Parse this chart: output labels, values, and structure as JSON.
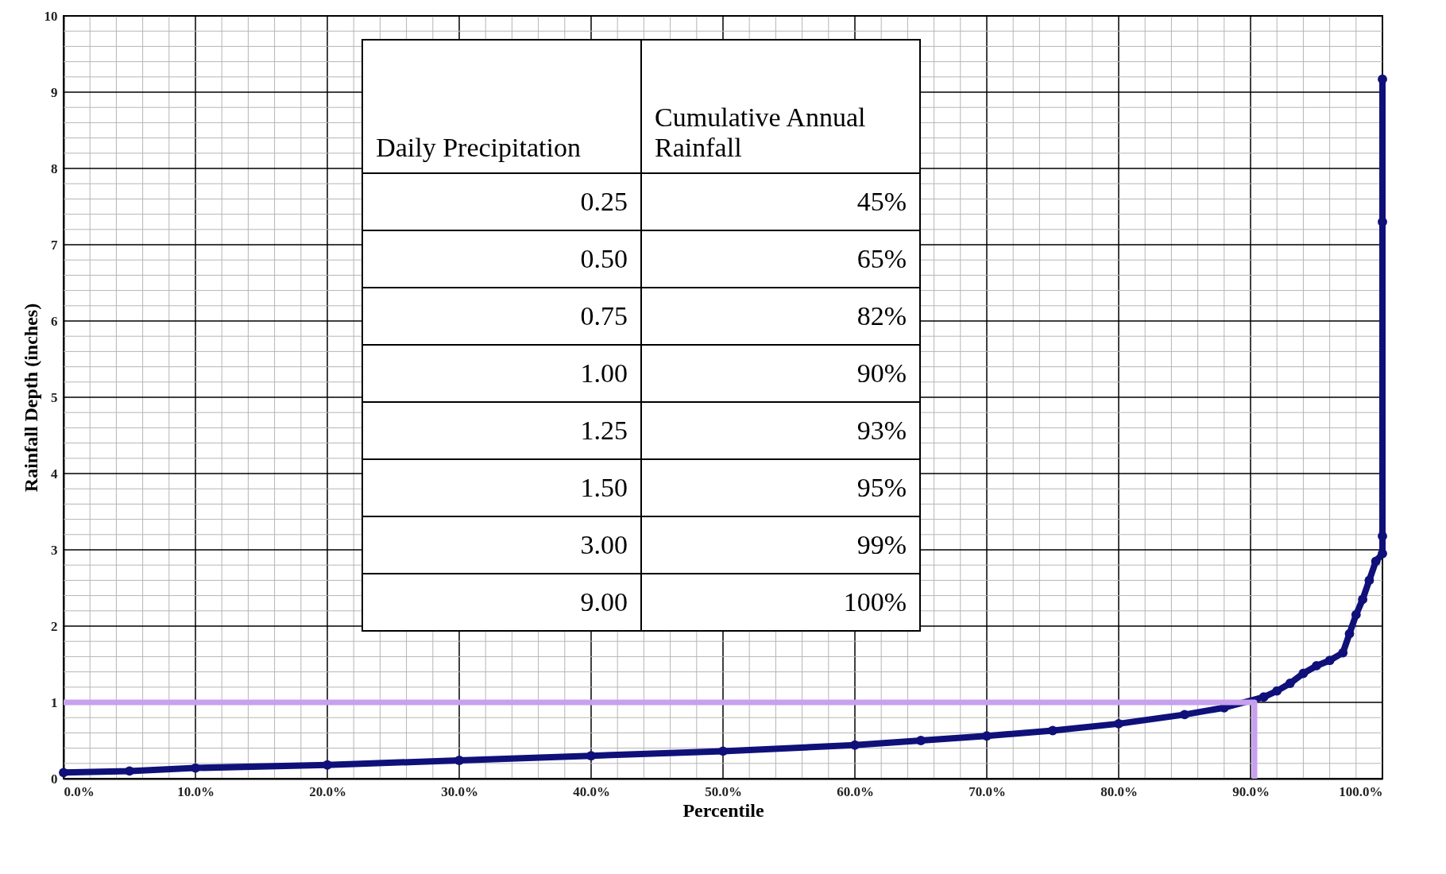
{
  "chart_data": {
    "type": "line",
    "xlabel": "Percentile",
    "ylabel": "Rainfall Depth (inches)",
    "xlim": [
      0,
      100
    ],
    "ylim": [
      0,
      10
    ],
    "xticks": [
      {
        "value": 0,
        "label": "0.0%"
      },
      {
        "value": 2,
        "label": null
      },
      {
        "value": 4,
        "label": null
      },
      {
        "value": 6,
        "label": null
      },
      {
        "value": 8,
        "label": null
      },
      {
        "value": 10,
        "label": "10.0%"
      },
      {
        "value": 12,
        "label": null
      },
      {
        "value": 14,
        "label": null
      },
      {
        "value": 16,
        "label": null
      },
      {
        "value": 18,
        "label": null
      },
      {
        "value": 20,
        "label": "20.0%"
      },
      {
        "value": 22,
        "label": null
      },
      {
        "value": 24,
        "label": null
      },
      {
        "value": 26,
        "label": null
      },
      {
        "value": 28,
        "label": null
      },
      {
        "value": 30,
        "label": "30.0%"
      },
      {
        "value": 32,
        "label": null
      },
      {
        "value": 34,
        "label": null
      },
      {
        "value": 36,
        "label": null
      },
      {
        "value": 38,
        "label": null
      },
      {
        "value": 40,
        "label": "40.0%"
      },
      {
        "value": 42,
        "label": null
      },
      {
        "value": 44,
        "label": null
      },
      {
        "value": 46,
        "label": null
      },
      {
        "value": 48,
        "label": null
      },
      {
        "value": 50,
        "label": "50.0%"
      },
      {
        "value": 52,
        "label": null
      },
      {
        "value": 54,
        "label": null
      },
      {
        "value": 56,
        "label": null
      },
      {
        "value": 58,
        "label": null
      },
      {
        "value": 60,
        "label": "60.0%"
      },
      {
        "value": 62,
        "label": null
      },
      {
        "value": 64,
        "label": null
      },
      {
        "value": 66,
        "label": null
      },
      {
        "value": 68,
        "label": null
      },
      {
        "value": 70,
        "label": "70.0%"
      },
      {
        "value": 72,
        "label": null
      },
      {
        "value": 74,
        "label": null
      },
      {
        "value": 76,
        "label": null
      },
      {
        "value": 78,
        "label": null
      },
      {
        "value": 80,
        "label": "80.0%"
      },
      {
        "value": 82,
        "label": null
      },
      {
        "value": 84,
        "label": null
      },
      {
        "value": 86,
        "label": null
      },
      {
        "value": 88,
        "label": null
      },
      {
        "value": 90,
        "label": "90.0%"
      },
      {
        "value": 92,
        "label": null
      },
      {
        "value": 94,
        "label": null
      },
      {
        "value": 96,
        "label": null
      },
      {
        "value": 98,
        "label": null
      },
      {
        "value": 100,
        "label": "100.0%"
      }
    ],
    "yticks": [
      0,
      {
        "value": 0.2,
        "label": null
      },
      {
        "value": 0.4,
        "label": null
      },
      {
        "value": 0.6,
        "label": null
      },
      {
        "value": 0.8,
        "label": null
      },
      1,
      {
        "value": 1.2,
        "label": null
      },
      {
        "value": 1.4,
        "label": null
      },
      {
        "value": 1.6,
        "label": null
      },
      {
        "value": 1.8,
        "label": null
      },
      2,
      {
        "value": 2.2,
        "label": null
      },
      {
        "value": 2.4,
        "label": null
      },
      {
        "value": 2.6,
        "label": null
      },
      {
        "value": 2.8,
        "label": null
      },
      3,
      {
        "value": 3.2,
        "label": null
      },
      {
        "value": 3.4,
        "label": null
      },
      {
        "value": 3.6,
        "label": null
      },
      {
        "value": 3.8,
        "label": null
      },
      4,
      {
        "value": 4.2,
        "label": null
      },
      {
        "value": 4.4,
        "label": null
      },
      {
        "value": 4.6,
        "label": null
      },
      {
        "value": 4.8,
        "label": null
      },
      5,
      {
        "value": 5.2,
        "label": null
      },
      {
        "value": 5.4,
        "label": null
      },
      {
        "value": 5.6,
        "label": null
      },
      {
        "value": 5.8,
        "label": null
      },
      6,
      {
        "value": 6.2,
        "label": null
      },
      {
        "value": 6.4,
        "label": null
      },
      {
        "value": 6.6,
        "label": null
      },
      {
        "value": 6.8,
        "label": null
      },
      7,
      {
        "value": 7.2,
        "label": null
      },
      {
        "value": 7.4,
        "label": null
      },
      {
        "value": 7.6,
        "label": null
      },
      {
        "value": 7.8,
        "label": null
      },
      8,
      {
        "value": 8.2,
        "label": null
      },
      {
        "value": 8.4,
        "label": null
      },
      {
        "value": 8.6,
        "label": null
      },
      {
        "value": 8.8,
        "label": null
      },
      9,
      {
        "value": 9.2,
        "label": null
      },
      {
        "value": 9.4,
        "label": null
      },
      {
        "value": 9.6,
        "label": null
      },
      {
        "value": 9.8,
        "label": null
      },
      10
    ],
    "grid": true,
    "marker": "circle",
    "line_style": "solid",
    "series": [
      {
        "color": "#10107a",
        "x": [
          0,
          5,
          10,
          20,
          30,
          40,
          50,
          60,
          65,
          70,
          75,
          80,
          85,
          88,
          91,
          92,
          93,
          94,
          95,
          96,
          97,
          97.5,
          98,
          98.5,
          99,
          99.5,
          100,
          100,
          100,
          100
        ],
        "values": [
          0.08,
          0.1,
          0.14,
          0.18,
          0.24,
          0.3,
          0.36,
          0.44,
          0.5,
          0.56,
          0.63,
          0.72,
          0.84,
          0.93,
          1.07,
          1.15,
          1.25,
          1.38,
          1.48,
          1.55,
          1.65,
          1.9,
          2.15,
          2.35,
          2.6,
          2.85,
          2.95,
          3.18,
          7.3,
          9.17
        ]
      },
      {
        "color": "#c8a0f0",
        "marker": "none",
        "x": [
          0,
          90.3,
          90.3
        ],
        "values": [
          1,
          1,
          0
        ]
      }
    ],
    "annotations": [
      "Daily Precipitation",
      "Cumulative Annual Rainfall",
      "0.25",
      "45%",
      "0.50",
      "65%",
      "0.75",
      "82%",
      "1.00",
      "90%",
      "1.25",
      "93%",
      "1.50",
      "95%",
      "3.00",
      "99%",
      "9.00",
      "100%"
    ]
  }
}
